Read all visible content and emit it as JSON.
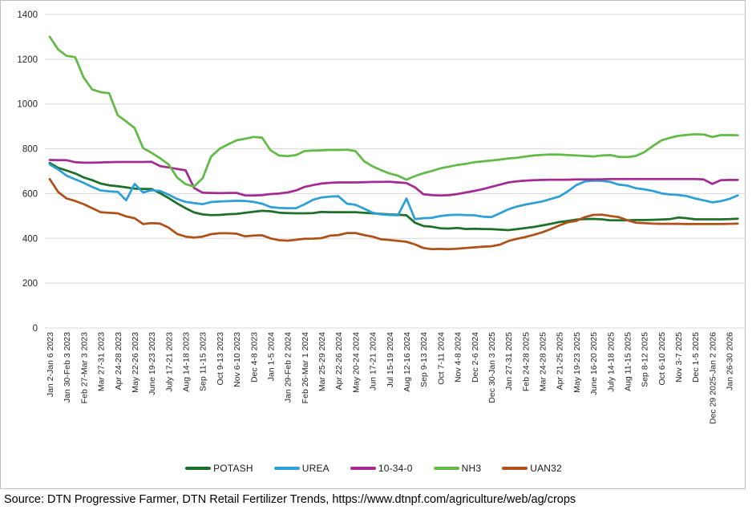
{
  "chart_data": {
    "type": "line",
    "title": "",
    "xlabel": "",
    "ylabel": "",
    "ylim": [
      0,
      1400
    ],
    "y_ticks": [
      0,
      200,
      400,
      600,
      800,
      1000,
      1200,
      1400
    ],
    "grid": "horizontal",
    "legend_position": "bottom",
    "x_tick_labels": [
      "Jan 2-Jan 6 2023",
      "Jan 30-Feb 3 2023",
      "Feb 27-Mar 3 2023",
      "Mar 27-31 2023",
      "Apr 24-28 2023",
      "May 22-26 2023",
      "June 19-23 2023",
      "July 17-21 2023",
      "Aug 14-18 2023",
      "Sep 11-15 2023",
      "Oct 9-13 2023",
      "Nov 6-10 2023",
      "Dec 4-8 2023",
      "Jan 1-5 2024",
      "Jan 29-Feb 2 2024",
      "Feb 26-Mar 1 2024",
      "Mar 25-29 2024",
      "Apr 22-26 2024",
      "May 20-24 2024",
      "Jun 17-21 2024",
      "Jul 15-19 2024",
      "Aug 12-16 2024",
      "Sep 9-13 2024",
      "Oct 7-11 2024",
      "Nov 4-8 2024",
      "Dec 2-6 2024",
      "Dec 30-Jan 3 2025",
      "Jan 27-31 2025",
      "Feb 24-28 2025",
      "Mar 24-28 2025",
      "Apr 21-25 2025",
      "May 19-23 2025",
      "June 16-20 2025",
      "July 14-18 2025",
      "Aug 11-15 2025",
      "Sep 8-12 2025",
      "Oct 6-10 2025",
      "Nov 3-7 2025",
      "Dec 1-5 2025",
      "Dec 29 2025-Jan 2 2026",
      "Jan 26-30 2026"
    ],
    "samples_per_tick": 2,
    "series": [
      {
        "name": "POTASH",
        "color": "#1e7029",
        "values": [
          737,
          715,
          703,
          690,
          672,
          660,
          645,
          637,
          633,
          628,
          622,
          621,
          620,
          602,
          580,
          556,
          535,
          516,
          507,
          504,
          505,
          508,
          509,
          514,
          519,
          523,
          521,
          515,
          513,
          512,
          512,
          513,
          518,
          517,
          517,
          517,
          517,
          514,
          512,
          509,
          507,
          506,
          503,
          470,
          455,
          452,
          445,
          444,
          447,
          442,
          443,
          442,
          441,
          439,
          437,
          441,
          446,
          451,
          458,
          465,
          473,
          478,
          484,
          486,
          487,
          485,
          481,
          481,
          481,
          482,
          482,
          483,
          484,
          486,
          493,
          490,
          485,
          485,
          485,
          485,
          486,
          488
        ]
      },
      {
        "name": "UREA",
        "color": "#2da0d8",
        "values": [
          730,
          708,
          680,
          664,
          648,
          630,
          614,
          610,
          608,
          570,
          643,
          605,
          615,
          612,
          595,
          576,
          563,
          558,
          553,
          562,
          565,
          566,
          568,
          567,
          563,
          555,
          540,
          536,
          535,
          535,
          552,
          572,
          583,
          587,
          588,
          555,
          550,
          533,
          515,
          507,
          505,
          503,
          578,
          486,
          490,
          492,
          500,
          504,
          506,
          504,
          503,
          497,
          495,
          512,
          530,
          542,
          551,
          558,
          565,
          576,
          587,
          610,
          638,
          654,
          658,
          657,
          652,
          640,
          636,
          624,
          619,
          612,
          601,
          596,
          594,
          589,
          578,
          570,
          561,
          566,
          576,
          592
        ]
      },
      {
        "name": "10-34-0",
        "color": "#a42b93",
        "values": [
          750,
          749,
          749,
          740,
          738,
          738,
          739,
          740,
          741,
          741,
          741,
          741,
          742,
          723,
          717,
          710,
          704,
          625,
          604,
          603,
          602,
          603,
          603,
          592,
          592,
          593,
          598,
          600,
          605,
          614,
          630,
          638,
          645,
          648,
          650,
          650,
          650,
          651,
          652,
          652,
          653,
          650,
          647,
          628,
          597,
          593,
          592,
          593,
          598,
          605,
          612,
          620,
          630,
          640,
          650,
          655,
          658,
          660,
          661,
          662,
          662,
          662,
          663,
          663,
          663,
          664,
          665,
          665,
          665,
          665,
          665,
          665,
          665,
          665,
          665,
          665,
          665,
          663,
          643,
          660,
          661,
          661
        ]
      },
      {
        "name": "NH3",
        "color": "#62bb46",
        "values": [
          1300,
          1243,
          1215,
          1209,
          1118,
          1065,
          1053,
          1048,
          950,
          922,
          893,
          803,
          782,
          758,
          730,
          672,
          642,
          632,
          668,
          765,
          800,
          820,
          838,
          845,
          853,
          850,
          793,
          770,
          767,
          772,
          790,
          792,
          793,
          795,
          795,
          796,
          790,
          745,
          722,
          705,
          690,
          680,
          662,
          678,
          691,
          701,
          713,
          720,
          728,
          733,
          740,
          744,
          748,
          752,
          757,
          760,
          765,
          770,
          773,
          775,
          774,
          772,
          770,
          768,
          766,
          770,
          772,
          764,
          763,
          768,
          785,
          812,
          837,
          849,
          858,
          862,
          865,
          864,
          853,
          861,
          861,
          860
        ]
      },
      {
        "name": "UAN32",
        "color": "#b05119",
        "values": [
          665,
          607,
          578,
          567,
          553,
          535,
          517,
          514,
          512,
          498,
          490,
          464,
          468,
          466,
          448,
          420,
          408,
          404,
          408,
          419,
          423,
          423,
          421,
          409,
          413,
          414,
          400,
          392,
          390,
          394,
          398,
          399,
          401,
          412,
          415,
          424,
          424,
          415,
          408,
          396,
          393,
          389,
          385,
          373,
          357,
          352,
          353,
          352,
          354,
          357,
          360,
          363,
          365,
          372,
          388,
          398,
          406,
          416,
          427,
          442,
          458,
          472,
          478,
          495,
          505,
          506,
          500,
          495,
          481,
          470,
          468,
          466,
          465,
          465,
          465,
          464,
          464,
          464,
          464,
          464,
          465,
          466
        ]
      }
    ]
  },
  "legend": {
    "items": [
      "POTASH",
      "UREA",
      "10-34-0",
      "NH3",
      "UAN32"
    ]
  },
  "source_text": "Source: DTN Progressive Farmer, DTN Retail Fertilizer Trends, https://www.dtnpf.com/agriculture/web/ag/crops",
  "style": {
    "grid_color": "#d9d9d9",
    "axis_text_color": "#262626",
    "border_color": "#bfbfbf",
    "line_width": 2.75
  }
}
